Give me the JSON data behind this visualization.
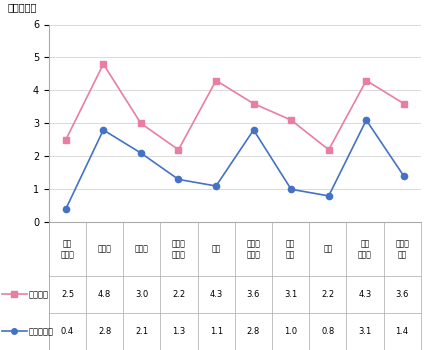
{
  "categories": [
    "農林\n水産業",
    "製造業",
    "建設業",
    "電力・\nガス等",
    "商業",
    "金融・\n保険業",
    "不動\n産業",
    "運輸",
    "情報\n通信業",
    "サービ\nス業"
  ],
  "series1_label": "売上増加",
  "series1_values": [
    2.5,
    4.8,
    3.0,
    2.2,
    4.3,
    3.6,
    3.1,
    2.2,
    4.3,
    3.6
  ],
  "series1_color": "#e87ea1",
  "series1_marker": "s",
  "series2_label": "売上非増加",
  "series2_values": [
    0.4,
    2.8,
    2.1,
    1.3,
    1.1,
    2.8,
    1.0,
    0.8,
    3.1,
    1.4
  ],
  "series2_color": "#4472c4",
  "series2_marker": "o",
  "ylabel": "（スコア）",
  "ylim": [
    0,
    6
  ],
  "yticks": [
    0,
    1,
    2,
    3,
    4,
    5,
    6
  ],
  "table_row1": [
    "2.5",
    "4.8",
    "3.0",
    "2.2",
    "4.3",
    "3.6",
    "3.1",
    "2.2",
    "4.3",
    "3.6"
  ],
  "table_row2": [
    "0.4",
    "2.8",
    "2.1",
    "1.3",
    "1.1",
    "2.8",
    "1.0",
    "0.8",
    "3.1",
    "1.4"
  ],
  "background_color": "#ffffff",
  "grid_color": "#cccccc"
}
